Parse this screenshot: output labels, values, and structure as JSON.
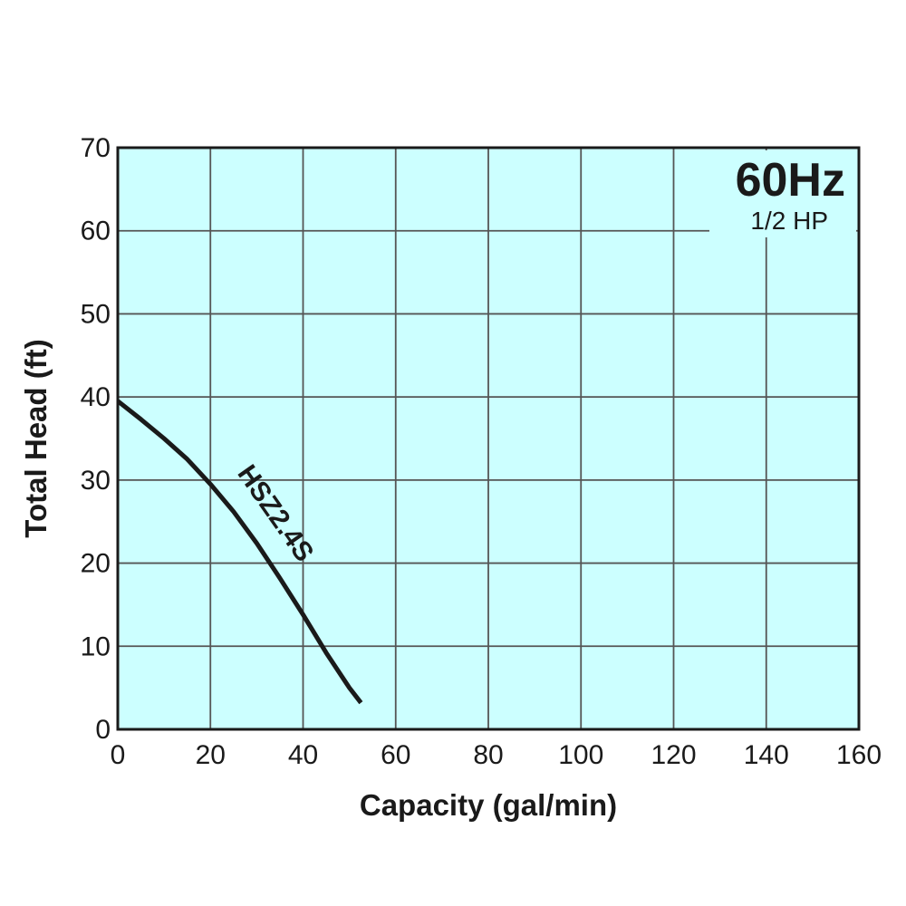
{
  "chart_data": {
    "type": "line",
    "xlabel": "Capacity (gal/min)",
    "ylabel": "Total Head (ft)",
    "xlim": [
      0,
      160
    ],
    "ylim": [
      0,
      70
    ],
    "xticks": [
      0,
      20,
      40,
      60,
      80,
      100,
      120,
      140,
      160
    ],
    "yticks": [
      0,
      10,
      20,
      30,
      40,
      50,
      60,
      70
    ],
    "grid": true,
    "plot_background": "#ccffff",
    "line_color": "#1a1a1a",
    "badge": {
      "frequency": "60Hz",
      "power": "1/2 HP"
    },
    "series": [
      {
        "name": "HSZ2.4S",
        "x": [
          0,
          5,
          10,
          15,
          20,
          25,
          30,
          35,
          40,
          45,
          50,
          52.5
        ],
        "y": [
          39.5,
          37.3,
          35.0,
          32.5,
          29.5,
          26.2,
          22.4,
          18.2,
          13.8,
          9.2,
          5.0,
          3.2
        ]
      }
    ]
  }
}
